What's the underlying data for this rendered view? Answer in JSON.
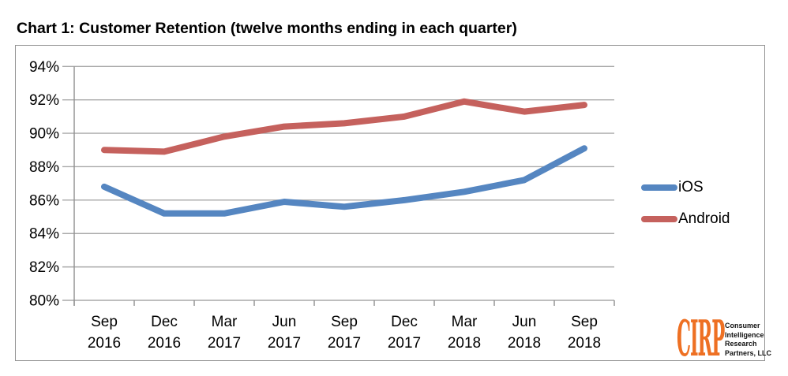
{
  "title": "Chart 1: Customer Retention (twelve months ending in each quarter)",
  "legend": [
    {
      "label": "iOS",
      "color": "#5586C1"
    },
    {
      "label": "Android",
      "color": "#C5615D"
    }
  ],
  "logo": {
    "brand": "CIRP",
    "brand_color": "#EE7023",
    "lines": [
      "Consumer",
      "Intelligence",
      "Research",
      "Partners, LLC"
    ]
  },
  "chart_data": {
    "type": "line",
    "categories": [
      "Sep 2016",
      "Dec 2016",
      "Mar 2017",
      "Jun 2017",
      "Sep 2017",
      "Dec 2017",
      "Mar 2018",
      "Jun 2018",
      "Sep 2018"
    ],
    "series": [
      {
        "name": "iOS",
        "color": "#5586C1",
        "values": [
          86.8,
          85.2,
          85.2,
          85.9,
          85.6,
          86.0,
          86.5,
          87.2,
          89.1
        ]
      },
      {
        "name": "Android",
        "color": "#C5615D",
        "values": [
          89.0,
          88.9,
          89.8,
          90.4,
          90.6,
          91.0,
          91.9,
          91.3,
          91.7
        ]
      }
    ],
    "ylim": [
      80,
      94
    ],
    "ytick_step": 2,
    "ytick_labels": [
      "80%",
      "82%",
      "84%",
      "86%",
      "88%",
      "90%",
      "92%",
      "94%"
    ],
    "xlabel": "",
    "ylabel": "",
    "grid": "horizontal",
    "legend_position": "right",
    "gridline_color": "#a9a9a9",
    "axis_color": "#8f8f8f"
  }
}
